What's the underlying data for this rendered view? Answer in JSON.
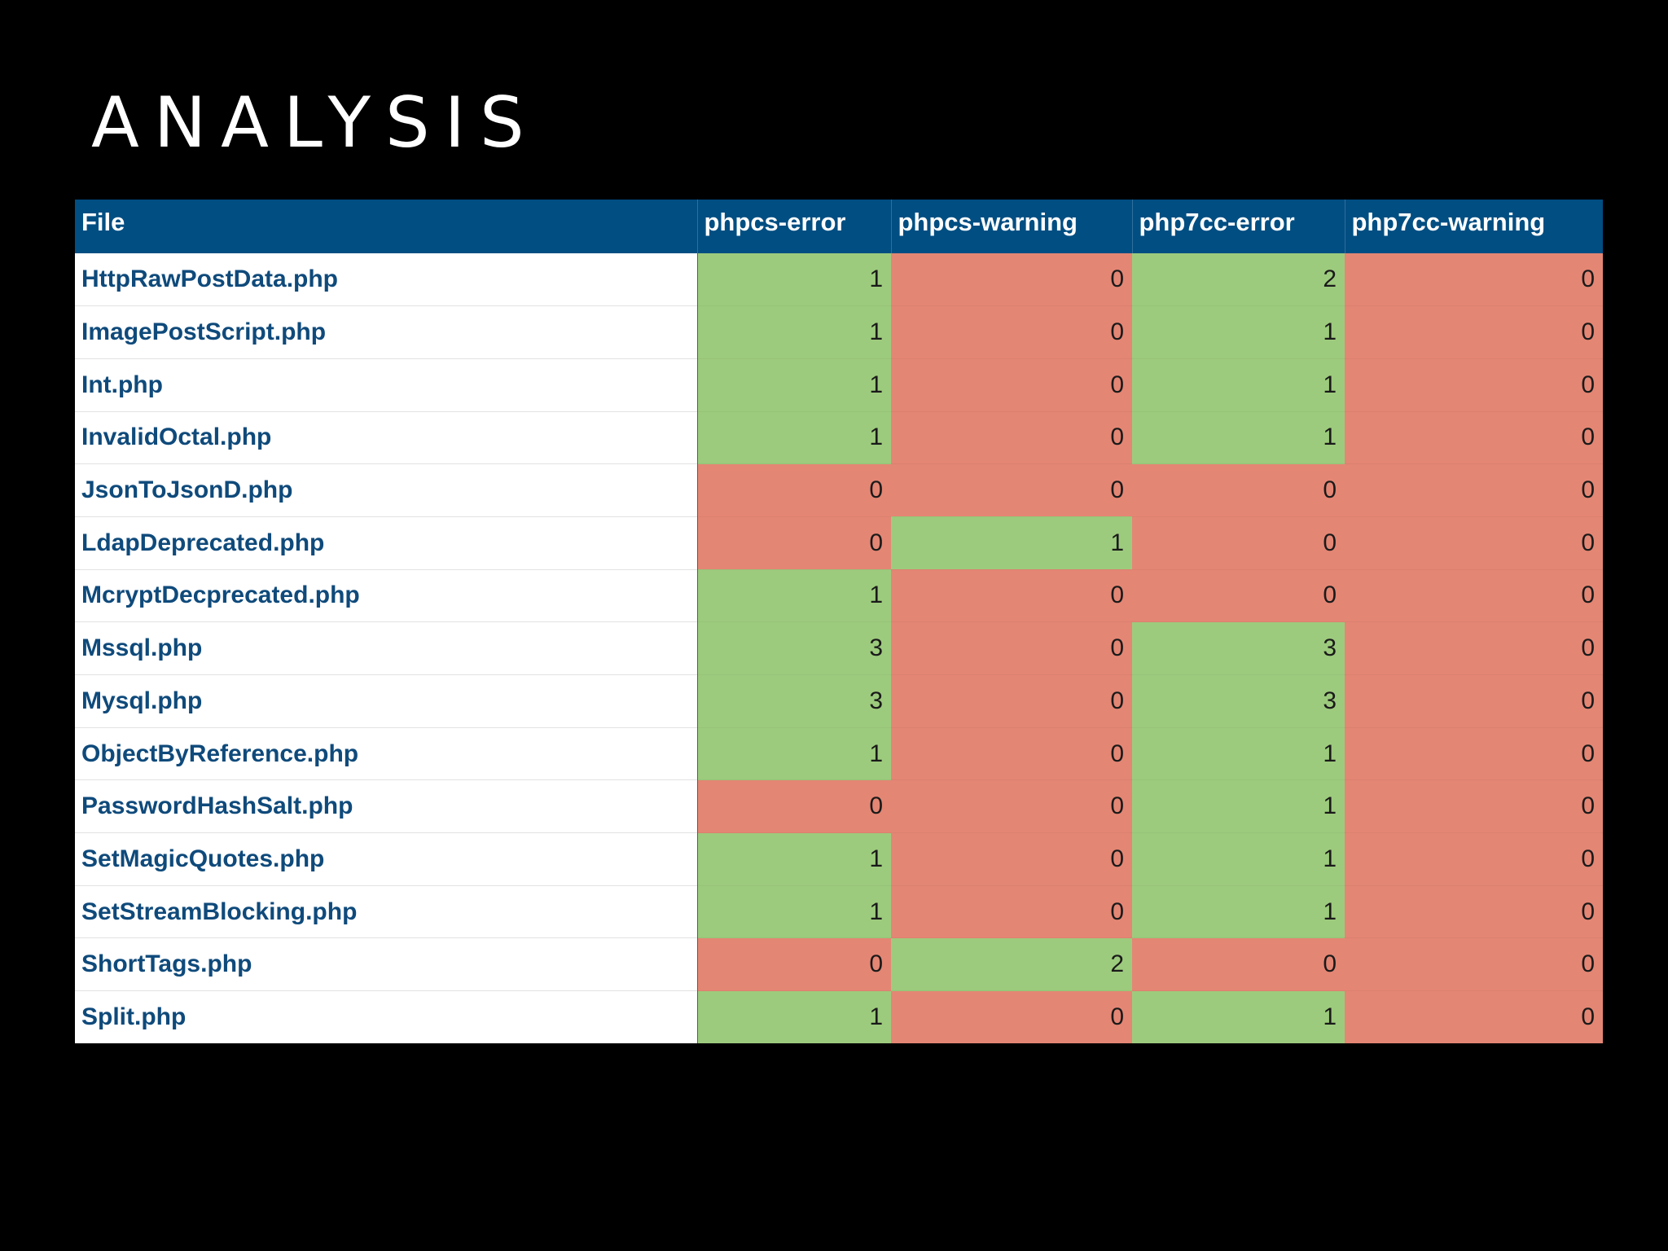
{
  "slide": {
    "title": "ANALYSIS"
  },
  "colors": {
    "background": "#000000",
    "header": "#004e82",
    "good": "#9dcb7d",
    "bad": "#e48674",
    "file_text": "#0f4a7b"
  },
  "table": {
    "columns": [
      "File",
      "phpcs-error",
      "phpcs-warning",
      "php7cc-error",
      "php7cc-warning"
    ],
    "rows": [
      {
        "file": "HttpRawPostData.php",
        "values": [
          1,
          0,
          2,
          0
        ],
        "status": [
          "good",
          "bad",
          "good",
          "bad"
        ]
      },
      {
        "file": "ImagePostScript.php",
        "values": [
          1,
          0,
          1,
          0
        ],
        "status": [
          "good",
          "bad",
          "good",
          "bad"
        ]
      },
      {
        "file": "Int.php",
        "values": [
          1,
          0,
          1,
          0
        ],
        "status": [
          "good",
          "bad",
          "good",
          "bad"
        ]
      },
      {
        "file": "InvalidOctal.php",
        "values": [
          1,
          0,
          1,
          0
        ],
        "status": [
          "good",
          "bad",
          "good",
          "bad"
        ]
      },
      {
        "file": "JsonToJsonD.php",
        "values": [
          0,
          0,
          0,
          0
        ],
        "status": [
          "bad",
          "bad",
          "bad",
          "bad"
        ]
      },
      {
        "file": "LdapDeprecated.php",
        "values": [
          0,
          1,
          0,
          0
        ],
        "status": [
          "bad",
          "good",
          "bad",
          "bad"
        ]
      },
      {
        "file": "McryptDecprecated.php",
        "values": [
          1,
          0,
          0,
          0
        ],
        "status": [
          "good",
          "bad",
          "bad",
          "bad"
        ]
      },
      {
        "file": "Mssql.php",
        "values": [
          3,
          0,
          3,
          0
        ],
        "status": [
          "good",
          "bad",
          "good",
          "bad"
        ]
      },
      {
        "file": "Mysql.php",
        "values": [
          3,
          0,
          3,
          0
        ],
        "status": [
          "good",
          "bad",
          "good",
          "bad"
        ]
      },
      {
        "file": "ObjectByReference.php",
        "values": [
          1,
          0,
          1,
          0
        ],
        "status": [
          "good",
          "bad",
          "good",
          "bad"
        ]
      },
      {
        "file": "PasswordHashSalt.php",
        "values": [
          0,
          0,
          1,
          0
        ],
        "status": [
          "bad",
          "bad",
          "good",
          "bad"
        ]
      },
      {
        "file": "SetMagicQuotes.php",
        "values": [
          1,
          0,
          1,
          0
        ],
        "status": [
          "good",
          "bad",
          "good",
          "bad"
        ]
      },
      {
        "file": "SetStreamBlocking.php",
        "values": [
          1,
          0,
          1,
          0
        ],
        "status": [
          "good",
          "bad",
          "good",
          "bad"
        ]
      },
      {
        "file": "ShortTags.php",
        "values": [
          0,
          2,
          0,
          0
        ],
        "status": [
          "bad",
          "good",
          "bad",
          "bad"
        ]
      },
      {
        "file": "Split.php",
        "values": [
          1,
          0,
          1,
          0
        ],
        "status": [
          "good",
          "bad",
          "good",
          "bad"
        ]
      }
    ]
  }
}
